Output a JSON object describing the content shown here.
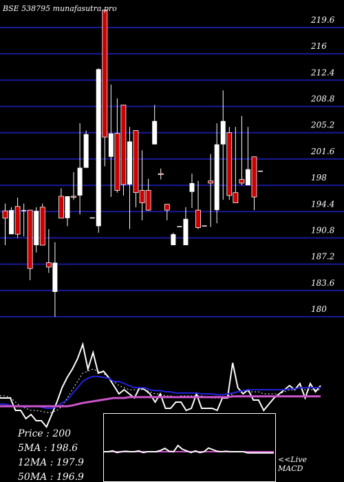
{
  "header": {
    "ticker": "BSE 538795 munafasutra.pro"
  },
  "legend": {
    "price": "Price  :  200",
    "ma5": "5MA :  198.6",
    "ma12": "12MA :  197.9",
    "ma50": "50MA :  196.9"
  },
  "macd_label": {
    "line1": "<<Live",
    "line2": "MACD"
  },
  "colors": {
    "background": "#000000",
    "gridline": "#1a1a9a",
    "bullish": "#ffffff",
    "bearish": "#cc0000",
    "ma_short": "#ffffff",
    "ma_mid": "#2222dd",
    "ma_long": "#cc55cc"
  },
  "chart_data": [
    {
      "type": "candlestick",
      "title": "BSE 538795 munafasutra.pro",
      "y_ticks": [
        219.6,
        216,
        212.4,
        208.8,
        205.2,
        201.6,
        198,
        194.4,
        190.8,
        187.2,
        183.6,
        180
      ],
      "ylim": [
        180,
        221.3
      ],
      "grid": true,
      "candles": [
        {
          "o": 194.5,
          "h": 195.5,
          "c": 193.5,
          "l": 189.8,
          "up": false
        },
        {
          "o": 191.3,
          "h": 195.0,
          "c": 194.6,
          "l": 191.3,
          "up": true
        },
        {
          "o": 195.1,
          "h": 196.3,
          "c": 191.3,
          "l": 190.8,
          "up": false
        },
        {
          "o": 194.6,
          "h": 195.5,
          "c": 194.6,
          "l": 191.0,
          "up": true
        },
        {
          "o": 194.6,
          "h": 194.6,
          "c": 186.6,
          "l": 185.0,
          "up": false
        },
        {
          "o": 189.8,
          "h": 195.0,
          "c": 194.5,
          "l": 188.8,
          "up": true
        },
        {
          "o": 195.0,
          "h": 195.5,
          "c": 189.8,
          "l": 189.8,
          "up": false
        },
        {
          "o": 187.4,
          "h": 192.0,
          "c": 186.8,
          "l": 186.0,
          "up": false
        },
        {
          "o": 183.4,
          "h": 190.2,
          "c": 187.4,
          "l": 180.0,
          "up": true
        },
        {
          "o": 196.5,
          "h": 197.6,
          "c": 193.5,
          "l": 193.5,
          "up": false
        },
        {
          "o": 193.5,
          "h": 196.5,
          "c": 196.5,
          "l": 192.4,
          "up": true
        },
        {
          "o": 196.5,
          "h": 199.8,
          "c": 196.5,
          "l": 196.0,
          "up": false
        },
        {
          "o": 196.6,
          "h": 206.5,
          "c": 200.4,
          "l": 194.0,
          "up": true
        },
        {
          "o": 200.4,
          "h": 205.5,
          "c": 205.0,
          "l": 200.4,
          "up": true
        },
        {
          "o": 193.6,
          "h": 193.6,
          "c": 193.5,
          "l": 193.5,
          "up": true
        },
        {
          "o": 192.4,
          "h": 214.0,
          "c": 213.9,
          "l": 191.5,
          "up": true
        },
        {
          "o": 222.0,
          "h": 222.0,
          "c": 204.6,
          "l": 200.6,
          "up": false
        },
        {
          "o": 205.1,
          "h": 211.8,
          "c": 201.9,
          "l": 196.4,
          "up": true
        },
        {
          "o": 205.1,
          "h": 209.9,
          "c": 197.3,
          "l": 197.0,
          "up": false
        },
        {
          "o": 209.0,
          "h": 209.0,
          "c": 198.1,
          "l": 196.6,
          "up": false
        },
        {
          "o": 204.0,
          "h": 206.0,
          "c": 198.1,
          "l": 192.0,
          "up": true
        },
        {
          "o": 205.5,
          "h": 205.5,
          "c": 197.0,
          "l": 195.0,
          "up": false
        },
        {
          "o": 197.3,
          "h": 202.8,
          "c": 195.6,
          "l": 193.2,
          "up": false
        },
        {
          "o": 197.3,
          "h": 198.9,
          "c": 194.6,
          "l": 194.5,
          "up": false
        },
        {
          "o": 203.6,
          "h": 209.0,
          "c": 206.8,
          "l": 203.6,
          "up": true
        },
        {
          "o": 199.6,
          "h": 200.3,
          "c": 199.6,
          "l": 198.8,
          "up": false
        },
        {
          "o": 195.4,
          "h": 195.4,
          "c": 194.6,
          "l": 193.2,
          "up": false
        },
        {
          "o": 189.8,
          "h": 191.5,
          "c": 191.3,
          "l": 189.8,
          "up": true
        },
        {
          "o": 192.4,
          "h": 192.4,
          "c": 192.4,
          "l": 192.4,
          "up": true
        },
        {
          "o": 189.8,
          "h": 195.0,
          "c": 193.4,
          "l": 189.8,
          "up": true
        },
        {
          "o": 197.1,
          "h": 199.6,
          "c": 198.3,
          "l": 194.9,
          "up": true
        },
        {
          "o": 194.6,
          "h": 198.6,
          "c": 192.2,
          "l": 192.0,
          "up": false
        },
        {
          "o": 192.5,
          "h": 192.5,
          "c": 192.5,
          "l": 192.5,
          "up": true
        },
        {
          "o": 198.6,
          "h": 202.3,
          "c": 198.3,
          "l": 192.3,
          "up": false
        },
        {
          "o": 194.6,
          "h": 206.5,
          "c": 203.6,
          "l": 192.8,
          "up": true
        },
        {
          "o": 203.6,
          "h": 211.0,
          "c": 206.8,
          "l": 196.0,
          "up": true
        },
        {
          "o": 205.2,
          "h": 206.0,
          "c": 196.6,
          "l": 196.0,
          "up": false
        },
        {
          "o": 197.0,
          "h": 206.0,
          "c": 195.6,
          "l": 195.6,
          "up": false
        },
        {
          "o": 198.8,
          "h": 207.5,
          "c": 198.3,
          "l": 198.0,
          "up": false
        },
        {
          "o": 198.0,
          "h": 206.0,
          "c": 200.2,
          "l": 198.0,
          "up": true
        },
        {
          "o": 201.9,
          "h": 201.9,
          "c": 196.4,
          "l": 194.6,
          "up": false
        },
        {
          "o": 200.0,
          "h": 200.0,
          "c": 200.0,
          "l": 200.0,
          "up": true
        }
      ]
    },
    {
      "type": "line",
      "title": "",
      "ylim": [
        -100,
        100
      ],
      "series": [
        {
          "values": [
            -30,
            -30,
            -30,
            -60,
            -60,
            -80,
            -70,
            -85,
            -85,
            -100,
            -70,
            -40,
            -5,
            20,
            40,
            65,
            100,
            40,
            80,
            30,
            35,
            20,
            0,
            -20,
            -10,
            -20,
            -30,
            -5,
            -10,
            -20,
            -40,
            -20,
            -55,
            -55,
            -40,
            -40,
            -60,
            -55,
            -20,
            -55,
            -55,
            -55,
            -60,
            -30,
            -30,
            55,
            -5,
            -20,
            -10,
            -35,
            -35,
            -60,
            -45,
            -30,
            -20,
            -10,
            0,
            -10,
            5,
            -30,
            5,
            -15,
            0
          ]
        },
        {
          "values": [
            -25,
            -25,
            -28,
            -40,
            -50,
            -55,
            -60,
            -60,
            -62,
            -65,
            -65,
            -60,
            -50,
            -30,
            -10,
            10,
            30,
            35,
            40,
            35,
            30,
            20,
            10,
            0,
            -5,
            -10,
            -10,
            -10,
            -10,
            -15,
            -20,
            -20,
            -25,
            -25,
            -28,
            -25,
            -25,
            -25,
            -25,
            -25,
            -28,
            -30,
            -30,
            -30,
            -25,
            -20,
            -15,
            -15,
            -15,
            -15,
            -15,
            -20,
            -20,
            -20,
            -20,
            -15,
            -10,
            -10,
            -5,
            -10,
            -10,
            -10,
            -10
          ]
        },
        {
          "values": [
            -45,
            -45,
            -48,
            -50,
            -50,
            -52,
            -50,
            -50,
            -52,
            -55,
            -55,
            -50,
            -42,
            -35,
            -20,
            -5,
            10,
            18,
            22,
            22,
            20,
            18,
            10,
            10,
            5,
            0,
            -5,
            -5,
            -5,
            -10,
            -12,
            -12,
            -15,
            -15,
            -18,
            -18,
            -18,
            -18,
            -18,
            -20,
            -20,
            -20,
            -22,
            -22,
            -20,
            -18,
            -15,
            -12,
            -10,
            -10,
            -10,
            -10,
            -10,
            -10,
            -10,
            -10,
            -8,
            -8,
            -5,
            -5,
            -5,
            -5,
            -5
          ]
        },
        {
          "values": [
            -50,
            -50,
            -50,
            -50,
            -50,
            -50,
            -50,
            -50,
            -50,
            -50,
            -50,
            -50,
            -50,
            -50,
            -48,
            -45,
            -42,
            -40,
            -38,
            -36,
            -34,
            -32,
            -30,
            -30,
            -30,
            -28,
            -28,
            -28,
            -28,
            -28,
            -28,
            -28,
            -28,
            -28,
            -28,
            -28,
            -28,
            -28,
            -28,
            -28,
            -28,
            -28,
            -28,
            -28,
            -28,
            -26,
            -26,
            -26,
            -26,
            -26,
            -26,
            -26,
            -26,
            -26,
            -26,
            -26,
            -26,
            -26,
            -26,
            -26,
            -26,
            -26,
            -26
          ]
        }
      ]
    },
    {
      "type": "line",
      "title": "MACD",
      "ylim": [
        -5,
        5
      ],
      "series": [
        {
          "values": [
            0,
            0,
            0.2,
            -0.2,
            0,
            0.1,
            0,
            0,
            0.2,
            -0.2,
            0,
            0,
            0,
            0.3,
            0.8,
            0.1,
            0,
            1.5,
            0.6,
            0.2,
            -0.2,
            0.2,
            -0.2,
            0,
            0.9,
            0.5,
            0.1,
            0,
            0.1,
            0,
            0,
            0,
            0,
            -0.3,
            -0.3,
            -0.3,
            -0.3,
            -0.3,
            -0.3,
            -0.3
          ]
        },
        {
          "values": [
            0,
            0,
            0,
            0,
            0,
            0,
            0,
            0,
            0,
            0,
            0,
            0,
            0,
            0,
            0,
            0,
            0,
            0,
            0,
            0,
            0,
            0,
            0,
            0,
            0,
            0,
            0,
            0,
            0,
            0,
            0,
            0,
            0,
            0,
            0,
            0,
            0,
            0,
            0,
            0
          ]
        }
      ]
    }
  ]
}
